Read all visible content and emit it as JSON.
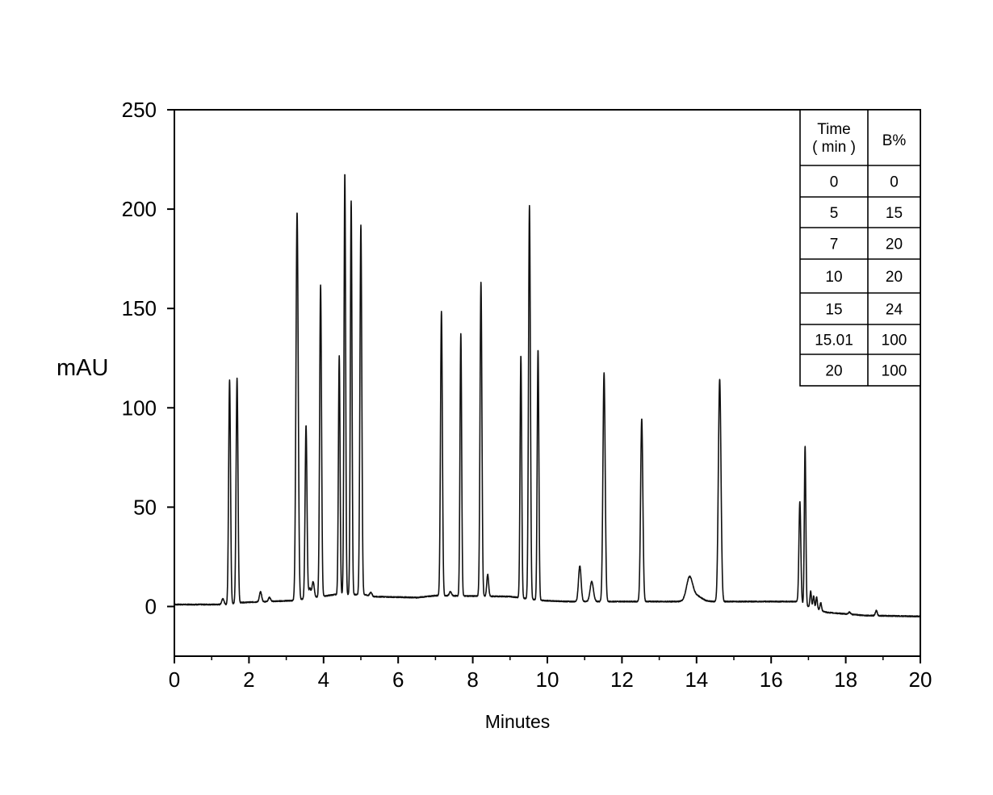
{
  "chart_data": {
    "type": "line",
    "title": "",
    "xlabel": "Minutes",
    "ylabel": "mAU",
    "xlim": [
      0,
      20
    ],
    "ylim": [
      -25,
      250
    ],
    "xticks": [
      "0",
      "2",
      "4",
      "6",
      "8",
      "10",
      "12",
      "14",
      "16",
      "18",
      "20"
    ],
    "yticks": [
      "0",
      "50",
      "100",
      "150",
      "200",
      "250"
    ],
    "grid": false,
    "line_color": "#111111",
    "baseline": [
      [
        0,
        1
      ],
      [
        1.4,
        1
      ],
      [
        1.8,
        2
      ],
      [
        3.2,
        3
      ],
      [
        4.3,
        6
      ],
      [
        5.1,
        6
      ],
      [
        5.3,
        5
      ],
      [
        6.5,
        4.5
      ],
      [
        7.0,
        5.5
      ],
      [
        9.0,
        5
      ],
      [
        9.9,
        3
      ],
      [
        10.5,
        2.5
      ],
      [
        16.7,
        2.5
      ],
      [
        17.0,
        0
      ],
      [
        17.5,
        -3
      ],
      [
        18.5,
        -4.5
      ],
      [
        20,
        -5
      ]
    ],
    "peaks": [
      {
        "rt": 1.3,
        "height": 3,
        "width": 0.03
      },
      {
        "rt": 1.48,
        "height": 113,
        "width": 0.025
      },
      {
        "rt": 1.68,
        "height": 113,
        "width": 0.025
      },
      {
        "rt": 2.31,
        "height": 5,
        "width": 0.03
      },
      {
        "rt": 2.55,
        "height": 2,
        "width": 0.03
      },
      {
        "rt": 3.29,
        "height": 195,
        "width": 0.03
      },
      {
        "rt": 3.53,
        "height": 87,
        "width": 0.025
      },
      {
        "rt": 3.63,
        "height": 5,
        "width": 0.03
      },
      {
        "rt": 3.72,
        "height": 8,
        "width": 0.03
      },
      {
        "rt": 3.92,
        "height": 157,
        "width": 0.025
      },
      {
        "rt": 4.42,
        "height": 120,
        "width": 0.022
      },
      {
        "rt": 4.57,
        "height": 212,
        "width": 0.022
      },
      {
        "rt": 4.74,
        "height": 198,
        "width": 0.022
      },
      {
        "rt": 5.0,
        "height": 186,
        "width": 0.025
      },
      {
        "rt": 5.27,
        "height": 2,
        "width": 0.03
      },
      {
        "rt": 7.16,
        "height": 143,
        "width": 0.025
      },
      {
        "rt": 7.4,
        "height": 2,
        "width": 0.03
      },
      {
        "rt": 7.68,
        "height": 132,
        "width": 0.022
      },
      {
        "rt": 8.22,
        "height": 158,
        "width": 0.025
      },
      {
        "rt": 8.4,
        "height": 11,
        "width": 0.025
      },
      {
        "rt": 9.29,
        "height": 122,
        "width": 0.022
      },
      {
        "rt": 9.52,
        "height": 198,
        "width": 0.025
      },
      {
        "rt": 9.75,
        "height": 126,
        "width": 0.022
      },
      {
        "rt": 10.87,
        "height": 18,
        "width": 0.035
      },
      {
        "rt": 11.19,
        "height": 10,
        "width": 0.045
      },
      {
        "rt": 11.52,
        "height": 115,
        "width": 0.03
      },
      {
        "rt": 12.53,
        "height": 92,
        "width": 0.03
      },
      {
        "rt": 13.81,
        "height": 11,
        "width": 0.08
      },
      {
        "rt": 13.98,
        "height": 3,
        "width": 0.15
      },
      {
        "rt": 14.62,
        "height": 112,
        "width": 0.035
      },
      {
        "rt": 16.77,
        "height": 51,
        "width": 0.025
      },
      {
        "rt": 16.91,
        "height": 80,
        "width": 0.02
      },
      {
        "rt": 17.06,
        "height": 8,
        "width": 0.02
      },
      {
        "rt": 17.14,
        "height": 6,
        "width": 0.02
      },
      {
        "rt": 17.22,
        "height": 6,
        "width": 0.02
      },
      {
        "rt": 17.33,
        "height": 4,
        "width": 0.02
      },
      {
        "rt": 18.1,
        "height": 1,
        "width": 0.03
      },
      {
        "rt": 18.82,
        "height": 2.5,
        "width": 0.025
      }
    ],
    "gradient_table": {
      "headers": [
        "Time\n( min )",
        "B%"
      ],
      "header_time_line1": "Time",
      "header_time_line2": "( min )",
      "header_b": "B%",
      "rows": [
        [
          "0",
          "0"
        ],
        [
          "5",
          "15"
        ],
        [
          "7",
          "20"
        ],
        [
          "10",
          "20"
        ],
        [
          "15",
          "24"
        ],
        [
          "15.01",
          "100"
        ],
        [
          "20",
          "100"
        ]
      ]
    }
  }
}
